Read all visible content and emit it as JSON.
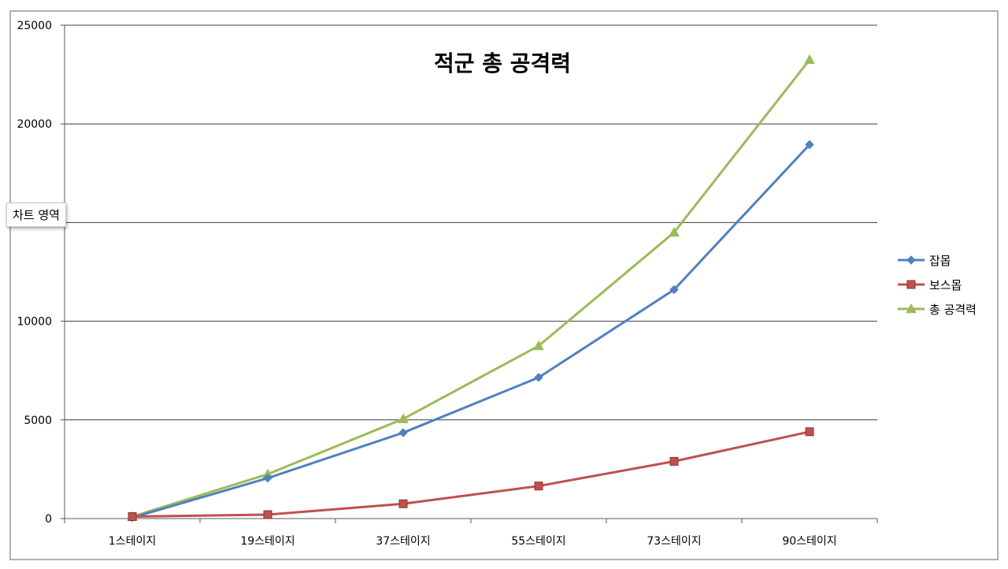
{
  "chart_data": {
    "type": "line",
    "title": "적군 총 공격력",
    "categories": [
      "1스테이지",
      "19스테이지",
      "37스테이지",
      "55스테이지",
      "73스테이지",
      "90스테이지"
    ],
    "series": [
      {
        "name": "잡몹",
        "color": "#4F81BD",
        "marker": "diamond",
        "values": [
          50,
          2050,
          4350,
          7150,
          11600,
          18950
        ]
      },
      {
        "name": "보스몹",
        "color": "#C0504D",
        "marker": "square",
        "values": [
          100,
          200,
          750,
          1650,
          2900,
          4400
        ]
      },
      {
        "name": "총 공격력",
        "color": "#9BBB59",
        "marker": "triangle",
        "values": [
          100,
          2250,
          5050,
          8750,
          14500,
          23250
        ]
      }
    ],
    "y_ticks": [
      "25000",
      "20000",
      "",
      "10000",
      "5000",
      "0"
    ],
    "ylim": [
      0,
      25000
    ],
    "grid": true,
    "legend_position": "right"
  },
  "tooltip": {
    "text": "차트 영역"
  }
}
